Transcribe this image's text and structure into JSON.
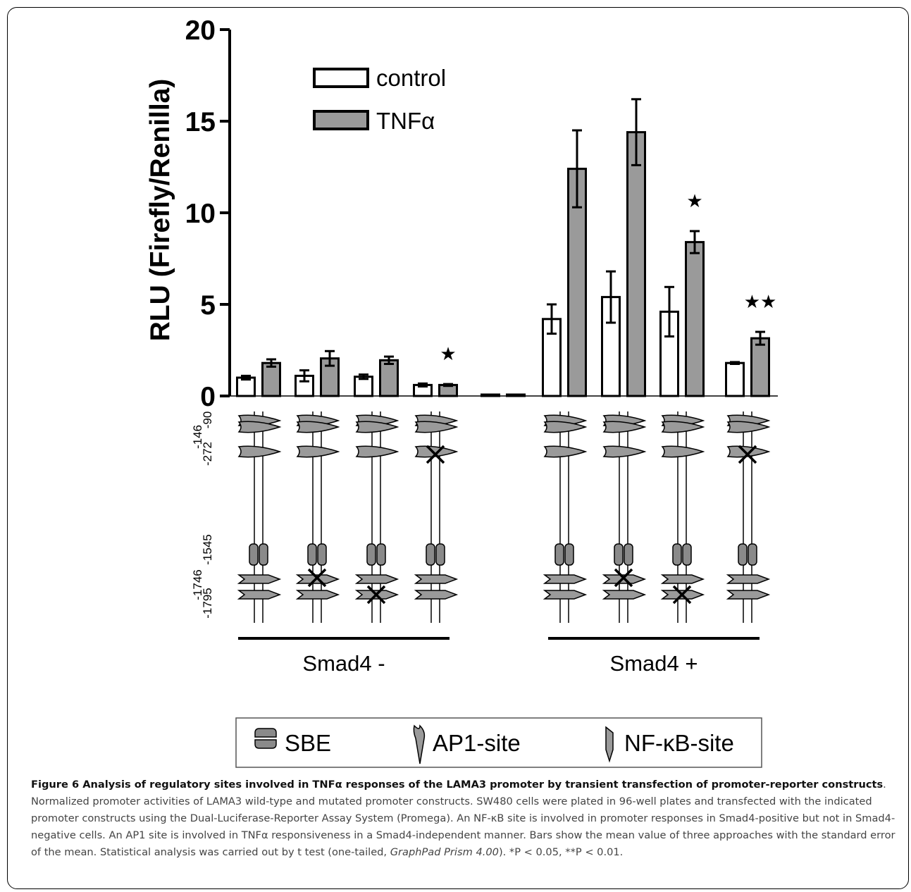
{
  "chart_data": {
    "type": "bar",
    "ylabel": "RLU (Firefly/Renilla)",
    "ylim": [
      0,
      20
    ],
    "yticks": [
      "0",
      "5",
      "10",
      "15",
      "20"
    ],
    "grid": false,
    "legend_position": "top-left",
    "series": [
      {
        "name": "control",
        "color": "#ffffff",
        "values": [
          1.0,
          1.1,
          1.05,
          0.6,
          0.0,
          4.2,
          5.4,
          4.6,
          1.8
        ],
        "errors": [
          0.1,
          0.3,
          0.12,
          0.08,
          0.0,
          0.8,
          1.4,
          1.35,
          0.05
        ]
      },
      {
        "name": "TNFα",
        "color": "#9a9a9a",
        "values": [
          1.8,
          2.05,
          1.95,
          0.6,
          0.0,
          12.4,
          14.4,
          8.4,
          3.15
        ],
        "errors": [
          0.2,
          0.4,
          0.2,
          0.05,
          0.0,
          2.1,
          1.8,
          0.6,
          0.35
        ]
      }
    ],
    "significance": [
      "",
      "",
      "",
      "★",
      "",
      "",
      "",
      "★",
      "★★"
    ],
    "constructs": [
      {
        "group": "Smad4 -",
        "mut272": false,
        "mut1746": false,
        "mut1795": false
      },
      {
        "group": "Smad4 -",
        "mut272": false,
        "mut1746": true,
        "mut1795": false
      },
      {
        "group": "Smad4 -",
        "mut272": false,
        "mut1746": false,
        "mut1795": true
      },
      {
        "group": "Smad4 -",
        "mut272": true,
        "mut1746": false,
        "mut1795": false
      },
      {
        "group": "",
        "empty": true
      },
      {
        "group": "Smad4 +",
        "mut272": false,
        "mut1746": false,
        "mut1795": false
      },
      {
        "group": "Smad4 +",
        "mut272": false,
        "mut1746": true,
        "mut1795": false
      },
      {
        "group": "Smad4 +",
        "mut272": false,
        "mut1746": false,
        "mut1795": true
      },
      {
        "group": "Smad4 +",
        "mut272": true,
        "mut1746": false,
        "mut1795": false
      }
    ],
    "position_labels": [
      "-90",
      "-146",
      "-272",
      "-1545",
      "-1746",
      "-1795"
    ],
    "groups": [
      "Smad4 -",
      "Smad4 +"
    ]
  },
  "site_legend": {
    "sbe": "SBE",
    "ap1": "AP1-site",
    "nfkb": "NF-κB-site"
  },
  "caption": {
    "bold": "Figure 6 Analysis of regulatory sites involved in TNFα responses of the LAMA3 promoter by transient transfection of promoter-reporter constructs",
    "text_1": ". Normalized promoter activities of LAMA3 wild-type and mutated promoter constructs. SW480 cells were plated in 96-well plates and transfected with the indicated promoter constructs using the Dual-Luciferase-Reporter Assay System (Promega). An NF-κB site is involved in promoter responses in Smad4-positive but not in Smad4-negative cells. An AP1 site is involved in TNFα responsiveness in a Smad4-independent manner. Bars show the mean value of three approaches with the standard error of the mean. Statistical analysis was carried out by t test (one-tailed, ",
    "italic": "GraphPad Prism 4.00",
    "text_2": "). *P < 0.05, **P < 0.01."
  }
}
